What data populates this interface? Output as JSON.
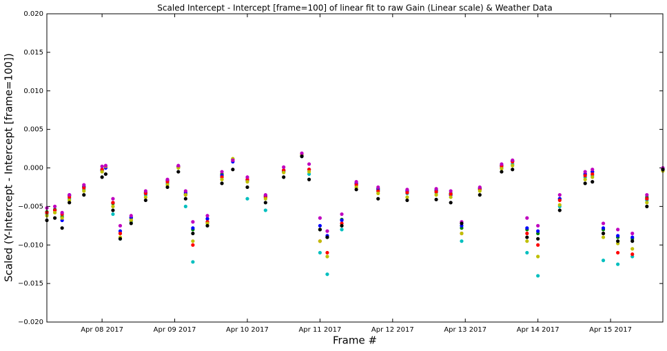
{
  "chart_data": {
    "type": "scatter",
    "title": "Scaled Intercept - Intercept [frame=100] of linear fit to raw Gain (Linear scale) & Weather Data",
    "x_label": "Frame #",
    "y_label": "Scaled (Y-Intercept - Intercept [frame=100])",
    "xlim": [
      7.24,
      15.72
    ],
    "xticks": [
      {
        "value": 8,
        "label": "Apr 08 2017"
      },
      {
        "value": 9,
        "label": "Apr 09 2017"
      },
      {
        "value": 10,
        "label": "Apr 10 2017"
      },
      {
        "value": 11,
        "label": "Apr 11 2017"
      },
      {
        "value": 12,
        "label": "Apr 12 2017"
      },
      {
        "value": 13,
        "label": "Apr 13 2017"
      },
      {
        "value": 14,
        "label": "Apr 14 2017"
      },
      {
        "value": 15,
        "label": "Apr 15 2017"
      }
    ],
    "ylim": [
      -0.02,
      0.02
    ],
    "yticks": [
      {
        "value": -0.02,
        "label": "−0.020"
      },
      {
        "value": -0.015,
        "label": "−0.015"
      },
      {
        "value": -0.01,
        "label": "−0.010"
      },
      {
        "value": -0.005,
        "label": "−0.005"
      },
      {
        "value": 0,
        "label": "0.000"
      },
      {
        "value": 0.005,
        "label": "0.005"
      },
      {
        "value": 0.01,
        "label": "0.010"
      },
      {
        "value": 0.015,
        "label": "0.015"
      },
      {
        "value": 0.02,
        "label": "0.020"
      }
    ],
    "x": [
      7.24,
      7.35,
      7.45,
      7.55,
      7.75,
      8.0,
      8.05,
      8.15,
      8.25,
      8.4,
      8.6,
      8.9,
      9.05,
      9.15,
      9.25,
      9.45,
      9.65,
      9.8,
      10.0,
      10.25,
      10.5,
      10.75,
      10.85,
      11.0,
      11.1,
      11.3,
      11.5,
      11.8,
      12.2,
      12.6,
      12.8,
      12.95,
      13.2,
      13.5,
      13.65,
      13.85,
      14.0,
      14.3,
      14.65,
      14.75,
      14.9,
      15.1,
      15.3,
      15.5,
      15.72
    ],
    "series": [
      {
        "color": "#00bfbf",
        "values": [
          -0.006,
          -0.0055,
          -0.0062,
          -0.004,
          -0.0028,
          -0.0003,
          0.0002,
          -0.006,
          -0.0092,
          -0.007,
          -0.0035,
          -0.002,
          0.0001,
          -0.005,
          -0.0122,
          -0.0072,
          -0.0012,
          0.0011,
          -0.004,
          -0.0055,
          -0.0005,
          0.0015,
          -0.0008,
          -0.011,
          -0.0138,
          -0.008,
          -0.0022,
          -0.003,
          -0.0033,
          -0.0032,
          -0.0035,
          -0.0095,
          -0.0028,
          0.0,
          0.0005,
          -0.011,
          -0.014,
          -0.005,
          -0.0012,
          -0.001,
          -0.012,
          -0.0125,
          -0.0115,
          -0.0042,
          -0.0003
        ]
      },
      {
        "color": "#008000",
        "values": [
          -0.0057,
          -0.0054,
          -0.0064,
          -0.0036,
          -0.0024,
          -0.0002,
          0.0002,
          -0.0046,
          -0.0085,
          -0.0065,
          -0.0032,
          -0.0016,
          0.0002,
          -0.0034,
          -0.008,
          -0.0066,
          -0.0008,
          0.0011,
          -0.0015,
          -0.0036,
          -0.0003,
          0.0017,
          -0.0002,
          -0.008,
          -0.009,
          -0.0067,
          -0.002,
          -0.0027,
          -0.003,
          -0.0029,
          -0.0033,
          -0.0078,
          -0.0026,
          0.0003,
          0.0009,
          -0.008,
          -0.0085,
          -0.004,
          -0.0008,
          -0.0005,
          -0.008,
          -0.009,
          -0.0092,
          -0.0038,
          -0.0001
        ]
      },
      {
        "color": "#0000ff",
        "values": [
          -0.0058,
          -0.0055,
          -0.0068,
          -0.0035,
          -0.0025,
          -0.0003,
          0.0,
          -0.0045,
          -0.0082,
          -0.0064,
          -0.0033,
          -0.0016,
          0.0002,
          -0.0032,
          -0.0078,
          -0.0066,
          -0.001,
          0.0008,
          -0.0016,
          -0.0037,
          -0.0004,
          0.0016,
          -0.0002,
          -0.0075,
          -0.0088,
          -0.0068,
          -0.002,
          -0.0028,
          -0.003,
          -0.003,
          -0.0035,
          -0.0075,
          -0.0027,
          0.0003,
          0.0009,
          -0.0078,
          -0.0082,
          -0.004,
          -0.0008,
          -0.0005,
          -0.0078,
          -0.0088,
          -0.009,
          -0.004,
          -0.0001
        ]
      },
      {
        "color": "#ff0000",
        "values": [
          -0.0058,
          -0.0055,
          -0.006,
          -0.0038,
          -0.0026,
          -0.0002,
          0.0002,
          -0.0045,
          -0.0085,
          -0.0068,
          -0.0033,
          -0.0018,
          0.0001,
          -0.0035,
          -0.01,
          -0.007,
          -0.0012,
          0.001,
          -0.0015,
          -0.0038,
          -0.0003,
          0.0017,
          -0.0002,
          -0.0095,
          -0.011,
          -0.0072,
          -0.0022,
          -0.003,
          -0.0032,
          -0.0031,
          -0.0034,
          -0.0085,
          -0.0028,
          0.0002,
          0.0008,
          -0.0085,
          -0.01,
          -0.0042,
          -0.001,
          -0.0008,
          -0.0085,
          -0.011,
          -0.0112,
          -0.004,
          -0.0002
        ]
      },
      {
        "color": "#bfbf00",
        "values": [
          -0.0062,
          -0.0058,
          -0.0065,
          -0.0042,
          -0.003,
          -0.0005,
          0.0002,
          -0.005,
          -0.009,
          -0.0068,
          -0.0038,
          -0.0022,
          0.0,
          -0.0035,
          -0.0095,
          -0.0072,
          -0.0015,
          0.0012,
          -0.0018,
          -0.004,
          -0.0006,
          0.0017,
          -0.0005,
          -0.0095,
          -0.0115,
          -0.0075,
          -0.0025,
          -0.0033,
          -0.0038,
          -0.0035,
          -0.0038,
          -0.0085,
          -0.003,
          -0.0001,
          0.0003,
          -0.0095,
          -0.0115,
          -0.0048,
          -0.0015,
          -0.0012,
          -0.009,
          -0.0098,
          -0.0105,
          -0.0045,
          -0.0004
        ]
      },
      {
        "color": "#bf00bf",
        "values": [
          -0.0052,
          -0.005,
          -0.0058,
          -0.0035,
          -0.0022,
          0.0002,
          0.0003,
          -0.004,
          -0.0075,
          -0.0062,
          -0.003,
          -0.0015,
          0.0003,
          -0.003,
          -0.007,
          -0.0062,
          -0.0005,
          0.001,
          -0.0012,
          -0.0035,
          0.0001,
          0.0019,
          0.0005,
          -0.0065,
          -0.0082,
          -0.006,
          -0.0018,
          -0.0025,
          -0.0028,
          -0.0027,
          -0.003,
          -0.007,
          -0.0025,
          0.0005,
          0.001,
          -0.0065,
          -0.0075,
          -0.0035,
          -0.0005,
          -0.0002,
          -0.0072,
          -0.008,
          -0.0085,
          -0.0035,
          0.0
        ]
      },
      {
        "color": "#000000",
        "values": [
          -0.0068,
          -0.0065,
          -0.0078,
          -0.0045,
          -0.0035,
          -0.0012,
          -0.0008,
          -0.0055,
          -0.0092,
          -0.0072,
          -0.0042,
          -0.0025,
          -0.0005,
          -0.004,
          -0.0085,
          -0.0075,
          -0.002,
          -0.0002,
          -0.0025,
          -0.0045,
          -0.0012,
          0.0015,
          -0.0015,
          -0.008,
          -0.009,
          -0.0075,
          -0.0028,
          -0.004,
          -0.0042,
          -0.0041,
          -0.0045,
          -0.0072,
          -0.0035,
          -0.0005,
          -0.0002,
          -0.009,
          -0.0092,
          -0.0055,
          -0.002,
          -0.0018,
          -0.0085,
          -0.0095,
          -0.0095,
          -0.005,
          -0.0002
        ]
      }
    ]
  }
}
